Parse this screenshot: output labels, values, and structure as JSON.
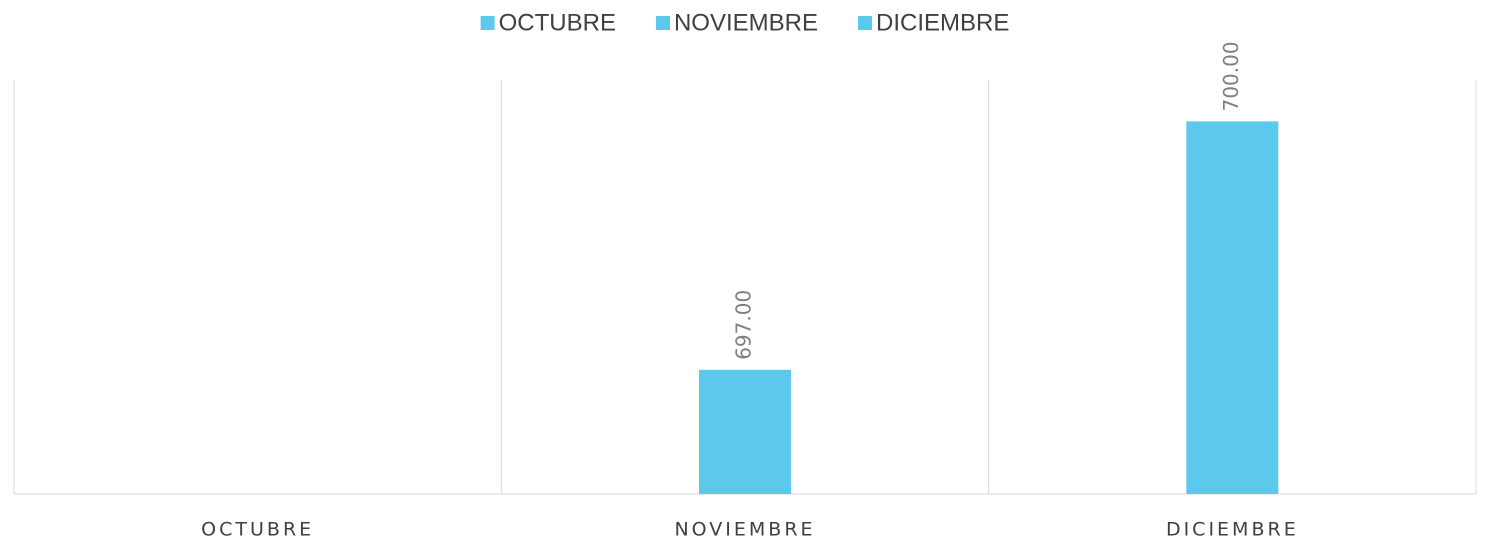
{
  "chart_data": {
    "type": "bar",
    "categories": [
      "OCTUBRE",
      "NOVIEMBRE",
      "DICIEMBRE"
    ],
    "series": [
      {
        "name": "OCTUBRE",
        "color": "#5bc8ec",
        "values": [
          null,
          null,
          null
        ]
      },
      {
        "name": "NOVIEMBRE",
        "color": "#5bc8ec",
        "values": [
          null,
          697,
          null
        ],
        "value_labels": [
          null,
          "697.00",
          null
        ]
      },
      {
        "name": "DICIEMBRE",
        "color": "#5bc8ec",
        "values": [
          null,
          null,
          700
        ],
        "value_labels": [
          null,
          null,
          "700.00"
        ]
      }
    ],
    "ylim": [
      695.5,
      700.5
    ],
    "legend": "top"
  }
}
